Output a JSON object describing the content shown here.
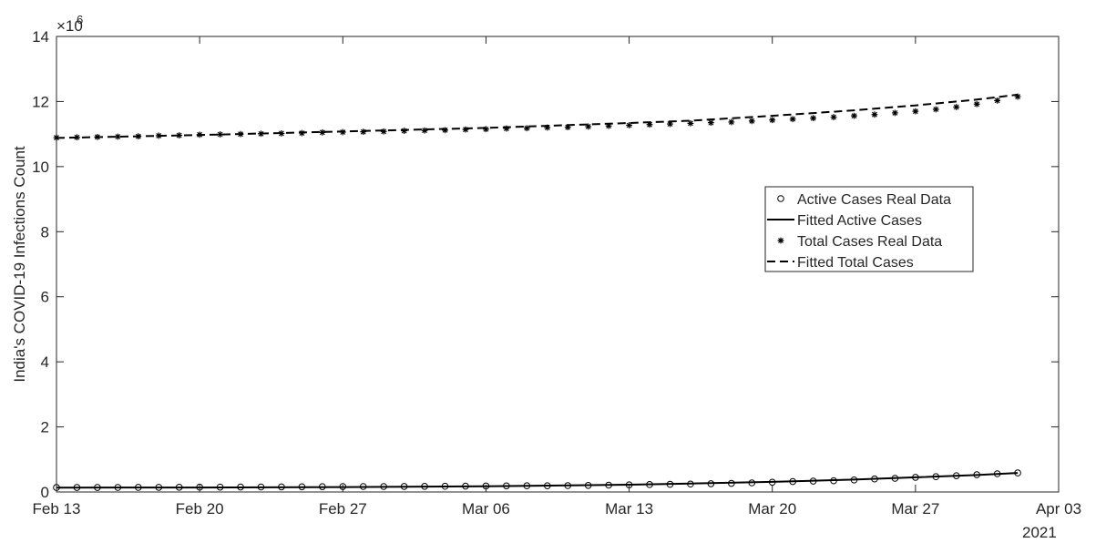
{
  "chart_data": {
    "type": "line",
    "title": "",
    "xlabel": "",
    "ylabel": "India's COVID-19 Infections Count",
    "x_start": "2021-02-13",
    "x_end": "2021-04-03",
    "x_ticks": [
      "Feb 13",
      "Feb 20",
      "Feb 27",
      "Mar 06",
      "Mar 13",
      "Mar 20",
      "Mar 27",
      "Apr 03"
    ],
    "x_year_label": "2021",
    "y_ticks": [
      "0",
      "2",
      "4",
      "6",
      "8",
      "10",
      "12",
      "14"
    ],
    "y_scale_label": "×10",
    "y_scale_exp": "6",
    "ylim": [
      0,
      14000000
    ],
    "grid": false,
    "legend_position": "right",
    "series": [
      {
        "name": "Active Cases Real Data",
        "style": "markers-circle",
        "dates": [
          "2021-02-13",
          "2021-02-14",
          "2021-02-15",
          "2021-02-16",
          "2021-02-17",
          "2021-02-18",
          "2021-02-19",
          "2021-02-20",
          "2021-02-21",
          "2021-02-22",
          "2021-02-23",
          "2021-02-24",
          "2021-02-25",
          "2021-02-26",
          "2021-02-27",
          "2021-02-28",
          "2021-03-01",
          "2021-03-02",
          "2021-03-03",
          "2021-03-04",
          "2021-03-05",
          "2021-03-06",
          "2021-03-07",
          "2021-03-08",
          "2021-03-09",
          "2021-03-10",
          "2021-03-11",
          "2021-03-12",
          "2021-03-13",
          "2021-03-14",
          "2021-03-15",
          "2021-03-16",
          "2021-03-17",
          "2021-03-18",
          "2021-03-19",
          "2021-03-20",
          "2021-03-21",
          "2021-03-22",
          "2021-03-23",
          "2021-03-24",
          "2021-03-25",
          "2021-03-26",
          "2021-03-27",
          "2021-03-28",
          "2021-03-29",
          "2021-03-30",
          "2021-03-31",
          "2021-04-01"
        ],
        "values": [
          137000,
          138000,
          139000,
          140000,
          141000,
          143000,
          145000,
          148000,
          150000,
          152000,
          154000,
          157000,
          160000,
          164000,
          167000,
          168000,
          168000,
          170000,
          173000,
          176000,
          180000,
          184000,
          188000,
          190000,
          192000,
          196000,
          202000,
          210000,
          220000,
          228000,
          235000,
          245000,
          255000,
          265000,
          280000,
          300000,
          320000,
          335000,
          345000,
          370000,
          400000,
          420000,
          450000,
          470000,
          500000,
          530000,
          560000,
          585000
        ]
      },
      {
        "name": "Fitted Active Cases",
        "style": "solid",
        "dates": [
          "2021-02-13",
          "2021-02-20",
          "2021-02-27",
          "2021-03-06",
          "2021-03-13",
          "2021-03-16",
          "2021-03-20",
          "2021-03-24",
          "2021-03-27",
          "2021-03-30",
          "2021-04-01"
        ],
        "values": [
          135000,
          138000,
          150000,
          175000,
          225000,
          260000,
          310000,
          380000,
          450000,
          520000,
          585000
        ]
      },
      {
        "name": "Total Cases Real Data",
        "style": "markers-star",
        "dates": [
          "2021-02-13",
          "2021-02-14",
          "2021-02-15",
          "2021-02-16",
          "2021-02-17",
          "2021-02-18",
          "2021-02-19",
          "2021-02-20",
          "2021-02-21",
          "2021-02-22",
          "2021-02-23",
          "2021-02-24",
          "2021-02-25",
          "2021-02-26",
          "2021-02-27",
          "2021-02-28",
          "2021-03-01",
          "2021-03-02",
          "2021-03-03",
          "2021-03-04",
          "2021-03-05",
          "2021-03-06",
          "2021-03-07",
          "2021-03-08",
          "2021-03-09",
          "2021-03-10",
          "2021-03-11",
          "2021-03-12",
          "2021-03-13",
          "2021-03-14",
          "2021-03-15",
          "2021-03-16",
          "2021-03-17",
          "2021-03-18",
          "2021-03-19",
          "2021-03-20",
          "2021-03-21",
          "2021-03-22",
          "2021-03-23",
          "2021-03-24",
          "2021-03-25",
          "2021-03-26",
          "2021-03-27",
          "2021-03-28",
          "2021-03-29",
          "2021-03-30",
          "2021-03-31",
          "2021-04-01"
        ],
        "values": [
          10890000,
          10900000,
          10910000,
          10920000,
          10930000,
          10950000,
          10960000,
          10980000,
          10990000,
          11000000,
          11010000,
          11020000,
          11030000,
          11050000,
          11060000,
          11070000,
          11080000,
          11100000,
          11110000,
          11120000,
          11140000,
          11150000,
          11170000,
          11180000,
          11200000,
          11210000,
          11230000,
          11250000,
          11270000,
          11290000,
          11310000,
          11330000,
          11350000,
          11370000,
          11400000,
          11430000,
          11460000,
          11490000,
          11520000,
          11560000,
          11600000,
          11650000,
          11700000,
          11760000,
          11830000,
          11920000,
          12030000,
          12150000
        ]
      },
      {
        "name": "Fitted Total Cases",
        "style": "dashed",
        "dates": [
          "2021-02-13",
          "2021-02-20",
          "2021-02-27",
          "2021-03-06",
          "2021-03-13",
          "2021-03-16",
          "2021-03-20",
          "2021-03-24",
          "2021-03-27",
          "2021-03-30",
          "2021-04-01"
        ],
        "values": [
          10880000,
          10970000,
          11080000,
          11190000,
          11340000,
          11410000,
          11560000,
          11730000,
          11880000,
          12060000,
          12210000
        ]
      }
    ]
  },
  "colors": {
    "axis": "#262626",
    "line": "#000000",
    "background": "#ffffff"
  }
}
